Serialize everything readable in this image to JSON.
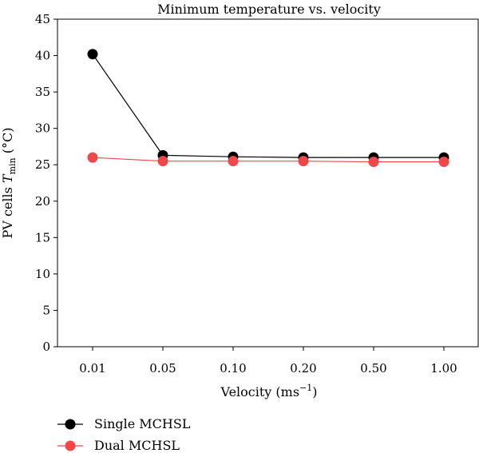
{
  "chart_data": {
    "type": "line",
    "title": "Minimum temperature vs. velocity",
    "xlabel": "Velocity (ms",
    "xlabel_sup": "−1",
    "xlabel_close": ")",
    "ylabel_prefix": "PV cells ",
    "ylabel_var": "T",
    "ylabel_sub": "min",
    "ylabel_suffix": " (°C)",
    "categories": [
      "0.01",
      "0.05",
      "0.10",
      "0.20",
      "0.50",
      "1.00"
    ],
    "ylim": [
      0,
      45
    ],
    "yticks": [
      "0",
      "5",
      "10",
      "15",
      "20",
      "25",
      "30",
      "35",
      "40",
      "45"
    ],
    "grid": false,
    "legend_position": "below plot, left",
    "series": [
      {
        "name": "Single MCHSL",
        "color": "#000000",
        "values": [
          40.2,
          26.3,
          26.1,
          26.0,
          26.0,
          26.0
        ]
      },
      {
        "name": "Dual MCHSL",
        "color": "#f04848",
        "values": [
          26.0,
          25.5,
          25.5,
          25.5,
          25.4,
          25.4
        ]
      }
    ]
  }
}
